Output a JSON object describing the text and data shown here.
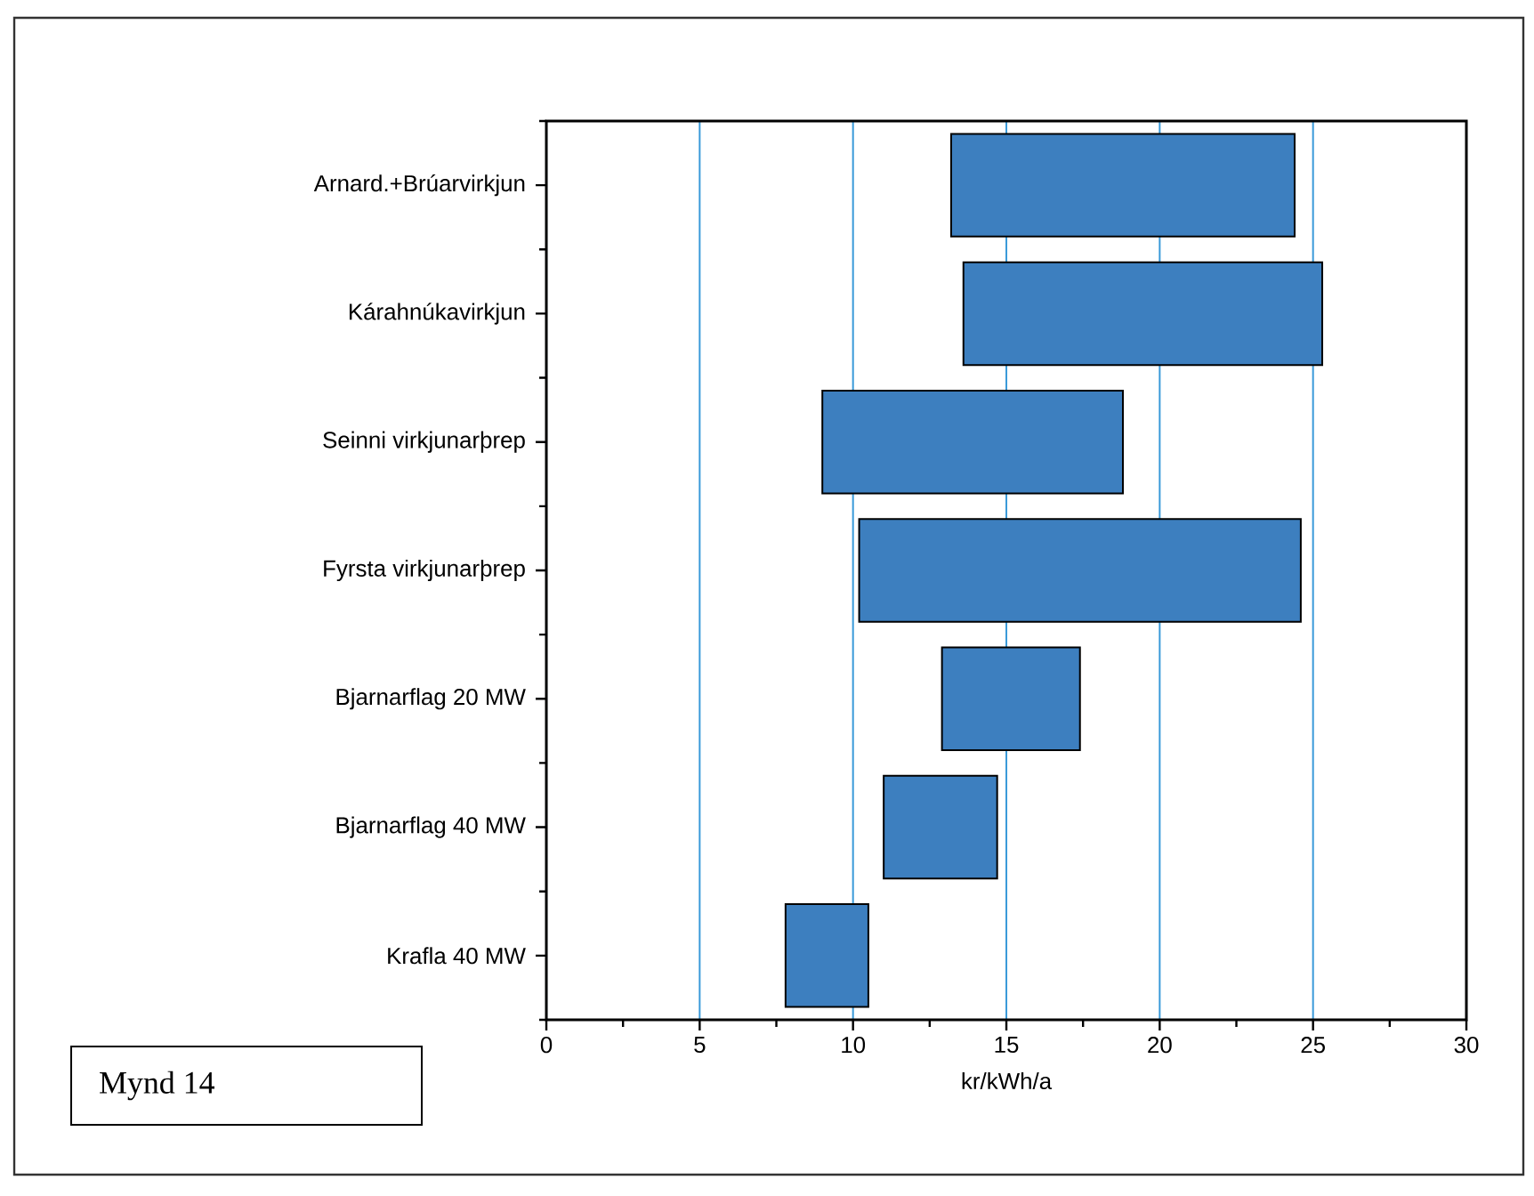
{
  "chart_data": {
    "type": "bar",
    "orientation": "horizontal",
    "categories": [
      "Arnard.+Brúarvirkjun",
      "Kárahnúkavirkjun",
      "Seinni virkjunarþrep",
      "Fyrsta virkjunarþrep",
      "Bjarnarflag 20 MW",
      "Bjarnarflag 40 MW",
      "Krafla 40 MW"
    ],
    "base": [
      13.2,
      13.6,
      9.0,
      10.2,
      12.9,
      11.0,
      7.8
    ],
    "values": [
      11.2,
      11.7,
      9.8,
      14.4,
      4.5,
      3.7,
      2.7
    ],
    "color": "#3d7fbf",
    "xlim": [
      0,
      30
    ],
    "xticks": [
      0,
      5,
      10,
      15,
      20,
      25,
      30
    ],
    "xlabel": "kr/kWh/a",
    "grid": "x",
    "annotations": [
      "Mynd 14"
    ]
  }
}
